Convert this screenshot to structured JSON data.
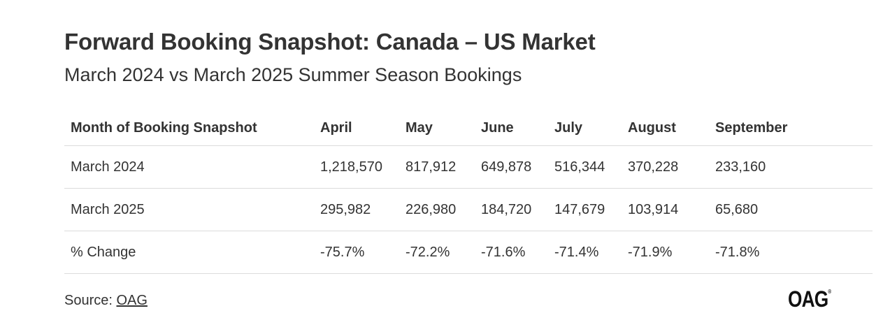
{
  "chart_data": {
    "type": "table",
    "title": "Forward Booking Snapshot: Canada – US Market",
    "subtitle": "March 2024 vs March 2025 Summer Season Bookings",
    "columns": [
      "Month of Booking Snapshot",
      "April",
      "May",
      "June",
      "July",
      "August",
      "September"
    ],
    "rows": [
      {
        "label": "March 2024",
        "values": [
          "1,218,570",
          "817,912",
          "649,878",
          "516,344",
          "370,228",
          "233,160"
        ]
      },
      {
        "label": "March 2025",
        "values": [
          "295,982",
          "226,980",
          "184,720",
          "147,679",
          "103,914",
          "65,680"
        ]
      },
      {
        "label": "% Change",
        "values": [
          "-75.7%",
          "-72.2%",
          "-71.6%",
          "-71.4%",
          "-71.9%",
          "-71.8%"
        ]
      }
    ]
  },
  "footer": {
    "source_prefix": "Source: ",
    "source_link": "OAG"
  },
  "logo": {
    "text": "OAG",
    "reg": "®"
  }
}
